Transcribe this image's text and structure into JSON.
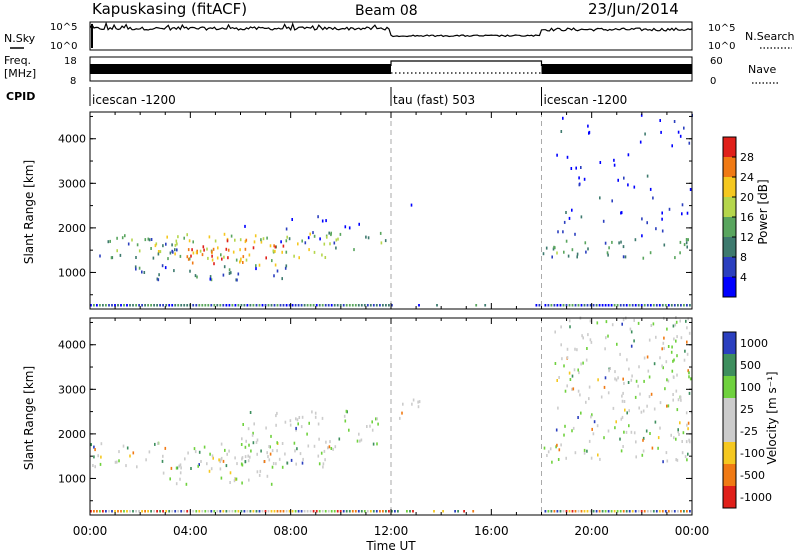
{
  "header": {
    "station": "Kapuskasing (fitACF)",
    "beam": "Beam 08",
    "date": "23/Jun/2014"
  },
  "noise_panel": {
    "left_label": "N.Sky",
    "right_label": "N.Search",
    "ticks": [
      "10^5",
      "10^0"
    ]
  },
  "freq_panel": {
    "left_label_1": "Freq.",
    "left_label_2": "[MHz]",
    "left_ticks": [
      "18",
      "8"
    ],
    "right_label": "Nave",
    "right_ticks": [
      "60",
      "0"
    ]
  },
  "cpid": {
    "label": "CPID",
    "segments": [
      {
        "name": "icescan -1200",
        "start": 0,
        "end": 12
      },
      {
        "name": "tau (fast) 503",
        "start": 12,
        "end": 18
      },
      {
        "name": "icescan -1200",
        "start": 18,
        "end": 24
      }
    ]
  },
  "x_axis": {
    "label": "Time UT",
    "ticks": [
      "00:00",
      "04:00",
      "08:00",
      "12:00",
      "16:00",
      "20:00",
      "00:00"
    ],
    "range": [
      0,
      24
    ]
  },
  "colors": {
    "power_scale": [
      "#0000ff",
      "#2b3fbf",
      "#3e7a6e",
      "#59a55e",
      "#b5d64c",
      "#f5c820",
      "#f07a14",
      "#e0201a"
    ],
    "velocity_scale": [
      "#e0201a",
      "#f07a14",
      "#f5c820",
      "#cccccc",
      "#cccccc",
      "#6fd13e",
      "#3e8f5e",
      "#2b3fbf"
    ]
  },
  "chart_data": [
    {
      "type": "heatmap",
      "title": "",
      "xlabel": "Time UT",
      "ylabel": "Slant Range [km]",
      "xlim": [
        0,
        24
      ],
      "ylim": [
        180,
        4600
      ],
      "y_ticks": [
        "4000",
        "3000",
        "2000",
        "1000"
      ],
      "colorbar": {
        "label": "Power [dB]",
        "range": [
          0,
          32
        ],
        "tick_values": [
          4,
          8,
          12,
          16,
          20,
          24,
          28
        ],
        "tick_labels": [
          "4",
          "8",
          "12",
          "16",
          "20",
          "24",
          "28"
        ]
      },
      "scatter_regions": [
        {
          "t": [
            1.0,
            9.7
          ],
          "r": [
            1250,
            1850
          ],
          "level": 0.55
        },
        {
          "t": [
            3.8,
            7.8
          ],
          "r": [
            1150,
            1750
          ],
          "level": 0.8
        },
        {
          "t": [
            4.8,
            6.2
          ],
          "r": [
            1250,
            1600
          ],
          "level": 0.95
        },
        {
          "t": [
            0.3,
            3.5
          ],
          "r": [
            1300,
            1800
          ],
          "level": 0.3
        },
        {
          "t": [
            1.5,
            8.0
          ],
          "r": [
            800,
            1150
          ],
          "level": 0.25
        },
        {
          "t": [
            6.0,
            11.5
          ],
          "r": [
            1600,
            2300
          ],
          "level": 0.1
        },
        {
          "t": [
            9.5,
            12.0
          ],
          "r": [
            1500,
            1900
          ],
          "level": 0.4
        },
        {
          "t": [
            12.2,
            13.0
          ],
          "r": [
            2400,
            2750
          ],
          "level": 0.05
        },
        {
          "t": [
            18.0,
            24.0
          ],
          "r": [
            1300,
            1750
          ],
          "level": 0.35
        },
        {
          "t": [
            18.5,
            24.0
          ],
          "r": [
            1800,
            4600
          ],
          "level": 0.1
        }
      ]
    },
    {
      "type": "heatmap",
      "title": "",
      "xlabel": "Time UT",
      "ylabel": "Slant Range [km]",
      "xlim": [
        0,
        24
      ],
      "ylim": [
        180,
        4600
      ],
      "y_ticks": [
        "4000",
        "3000",
        "2000",
        "1000"
      ],
      "colorbar": {
        "label": "Velocity [m s⁻¹]",
        "tick_labels": [
          "1000",
          "500",
          "100",
          "25",
          "-25",
          "-100",
          "-500",
          "-1000"
        ]
      },
      "scatter_regions": [
        {
          "t": [
            0.0,
            9.8
          ],
          "r": [
            1200,
            1800
          ],
          "level": 0.5
        },
        {
          "t": [
            3.8,
            8.5
          ],
          "r": [
            1200,
            1700
          ],
          "level": 0.65
        },
        {
          "t": [
            2.5,
            7.5
          ],
          "r": [
            850,
            1150
          ],
          "level": 0.6
        },
        {
          "t": [
            6.0,
            11.5
          ],
          "r": [
            1700,
            2500
          ],
          "level": 0.5
        },
        {
          "t": [
            12.2,
            13.2
          ],
          "r": [
            2200,
            2750
          ],
          "level": 0.5
        },
        {
          "t": [
            18.0,
            24.0
          ],
          "r": [
            1350,
            1750
          ],
          "level": 0.5
        },
        {
          "t": [
            18.5,
            24.0
          ],
          "r": [
            1800,
            4600
          ],
          "level": 0.5
        }
      ]
    }
  ]
}
